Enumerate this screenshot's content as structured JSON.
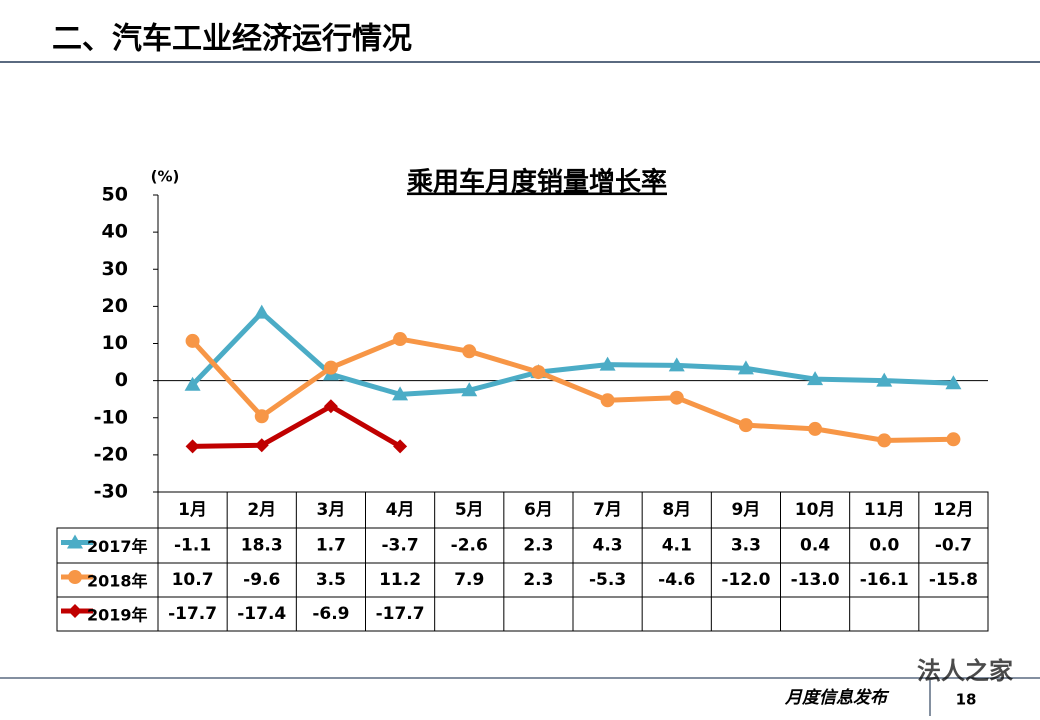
{
  "header": {
    "title": "二、汽车工业经济运行情况"
  },
  "footer": {
    "label": "月度信息发布",
    "page": "18",
    "watermark": "法人之家"
  },
  "chart_data": {
    "type": "line",
    "title": "乘用车月度销量增长率",
    "y_label": "(%)",
    "categories": [
      "1月",
      "2月",
      "3月",
      "4月",
      "5月",
      "6月",
      "7月",
      "8月",
      "9月",
      "10月",
      "11月",
      "12月"
    ],
    "ylim": [
      -30,
      50
    ],
    "yticks": [
      -30,
      -20,
      -10,
      0,
      10,
      20,
      30,
      40,
      50
    ],
    "series": [
      {
        "name": "2017年",
        "color": "#4bacc6",
        "marker": "triangle",
        "values": [
          -1.1,
          18.3,
          1.7,
          -3.7,
          -2.6,
          2.3,
          4.3,
          4.1,
          3.3,
          0.4,
          0.0,
          -0.7
        ],
        "value_labels": [
          "-1.1",
          "18.3",
          "1.7",
          "-3.7",
          "-2.6",
          "2.3",
          "4.3",
          "4.1",
          "3.3",
          "0.4",
          "0.0",
          "-0.7"
        ]
      },
      {
        "name": "2018年",
        "color": "#f79646",
        "marker": "circle",
        "values": [
          10.7,
          -9.6,
          3.5,
          11.2,
          7.9,
          2.3,
          -5.3,
          -4.6,
          -12.0,
          -13.0,
          -16.1,
          -15.8
        ],
        "value_labels": [
          "10.7",
          "-9.6",
          "3.5",
          "11.2",
          "7.9",
          "2.3",
          "-5.3",
          "-4.6",
          "-12.0",
          "-13.0",
          "-16.1",
          "-15.8"
        ]
      },
      {
        "name": "2019年",
        "color": "#c00000",
        "marker": "diamond",
        "values": [
          -17.7,
          -17.4,
          -6.9,
          -17.7,
          null,
          null,
          null,
          null,
          null,
          null,
          null,
          null
        ],
        "value_labels": [
          "-17.7",
          "-17.4",
          "-6.9",
          "-17.7",
          null,
          null,
          null,
          null,
          null,
          null,
          null,
          null
        ]
      }
    ]
  }
}
